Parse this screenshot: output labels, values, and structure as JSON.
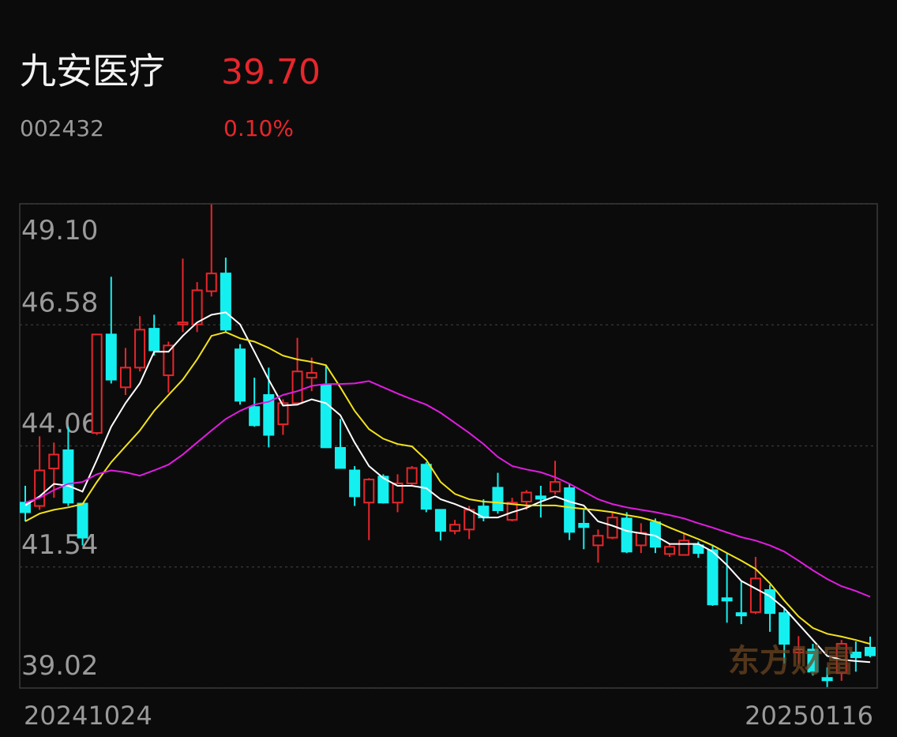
{
  "chart_data": {
    "type": "candlestick",
    "title": "九安医疗",
    "price": "39.70",
    "subtitle": "002432",
    "change": "0.10%",
    "watermark": "东方财富",
    "categories": [
      "20241024",
      null,
      null,
      null,
      null,
      null,
      null,
      null,
      null,
      null,
      null,
      null,
      null,
      null,
      null,
      null,
      null,
      null,
      null,
      null,
      null,
      null,
      null,
      null,
      null,
      null,
      null,
      null,
      null,
      null,
      null,
      null,
      null,
      null,
      null,
      null,
      null,
      null,
      null,
      null,
      null,
      null,
      null,
      null,
      null,
      null,
      null,
      null,
      null,
      null,
      null,
      null,
      null,
      null,
      null,
      null,
      null,
      null,
      null,
      "20250116"
    ],
    "open": [
      42.88,
      42.81,
      43.59,
      43.97,
      42.86,
      44.33,
      46.38,
      45.28,
      45.69,
      46.5,
      45.53,
      46.59,
      46.59,
      47.28,
      47.65,
      46.07,
      44.87,
      45.12,
      44.51,
      44.95,
      45.48,
      45.33,
      44.02,
      43.55,
      42.88,
      43.42,
      42.88,
      43.28,
      43.67,
      42.73,
      42.29,
      42.32,
      42.8,
      43.19,
      42.52,
      42.9,
      43.01,
      43.11,
      43.18,
      42.44,
      41.99,
      42.15,
      42.55,
      41.99,
      42.47,
      41.81,
      41.79,
      41.99,
      41.89,
      40.89,
      40.58,
      40.6,
      41.06,
      40.58,
      39.76,
      39.82,
      39.23,
      39.33,
      39.76,
      39.86
    ],
    "high": [
      43.23,
      44.26,
      44.13,
      44.46,
      42.86,
      46.38,
      47.58,
      46.1,
      46.76,
      46.79,
      46.23,
      47.96,
      47.47,
      49.09,
      47.98,
      46.18,
      45.48,
      45.69,
      45.03,
      46.31,
      45.9,
      45.74,
      44.62,
      43.64,
      43.39,
      43.47,
      43.47,
      43.64,
      43.72,
      42.73,
      42.52,
      42.81,
      42.95,
      43.5,
      42.98,
      43.14,
      43.23,
      43.75,
      43.28,
      42.73,
      42.32,
      42.68,
      42.68,
      42.45,
      42.55,
      42.02,
      42.24,
      42.07,
      41.99,
      41.83,
      41.25,
      41.75,
      41.17,
      40.68,
      40.1,
      39.94,
      39.45,
      40.02,
      39.99,
      40.09
    ],
    "low": [
      42.49,
      42.73,
      42.98,
      42.81,
      41.99,
      44.29,
      45.36,
      45.12,
      45.61,
      45.94,
      45.17,
      46.43,
      46.43,
      47.17,
      46.43,
      44.92,
      44.46,
      44.03,
      44.29,
      44.92,
      45.2,
      44.03,
      43.59,
      42.81,
      42.1,
      42.86,
      42.68,
      43.24,
      42.68,
      42.09,
      42.22,
      42.12,
      42.49,
      42.65,
      42.49,
      42.73,
      42.57,
      43.05,
      42.1,
      41.91,
      41.63,
      42.12,
      41.83,
      41.83,
      41.83,
      41.75,
      41.78,
      41.73,
      40.73,
      40.38,
      40.35,
      40.56,
      40.19,
      39.53,
      39.53,
      39.28,
      39.04,
      39.17,
      39.36,
      39.66
    ],
    "close": [
      42.68,
      43.55,
      43.88,
      42.88,
      42.15,
      46.38,
      45.44,
      45.69,
      46.48,
      46.05,
      46.15,
      46.63,
      47.3,
      47.65,
      46.48,
      45.0,
      44.49,
      44.29,
      44.95,
      45.61,
      45.58,
      44.03,
      43.6,
      43.01,
      43.36,
      42.88,
      43.28,
      43.6,
      42.75,
      42.29,
      42.42,
      42.73,
      42.57,
      42.72,
      42.88,
      43.09,
      42.96,
      43.31,
      42.27,
      42.37,
      42.19,
      42.57,
      41.86,
      42.25,
      41.96,
      41.96,
      42.09,
      41.83,
      40.76,
      40.84,
      40.53,
      41.3,
      40.58,
      39.94,
      39.82,
      39.36,
      39.18,
      39.94,
      39.66,
      39.7
    ],
    "up_color": "#e8262c",
    "down_color": "#14f0f0",
    "moving_averages": [
      {
        "color": "#ffffff",
        "values": [
          42.82,
          43.01,
          43.27,
          43.23,
          43.11,
          43.77,
          44.46,
          44.95,
          45.36,
          46.02,
          46.02,
          46.35,
          46.63,
          46.79,
          46.84,
          46.59,
          46.02,
          45.44,
          44.9,
          44.92,
          45.03,
          44.95,
          44.7,
          44.13,
          43.64,
          43.39,
          43.23,
          43.23,
          43.18,
          42.95,
          42.85,
          42.73,
          42.57,
          42.57,
          42.68,
          42.77,
          42.9,
          43.01,
          42.9,
          42.82,
          42.49,
          42.4,
          42.29,
          42.24,
          42.19,
          42.02,
          42.02,
          42.02,
          41.86,
          41.58,
          41.25,
          41.09,
          40.93,
          40.68,
          40.35,
          40.02,
          39.69,
          39.61,
          39.58,
          39.56
        ]
      },
      {
        "color": "#f2e21c",
        "values": [
          42.49,
          42.65,
          42.73,
          42.78,
          42.85,
          43.31,
          43.72,
          44.05,
          44.38,
          44.79,
          45.12,
          45.44,
          45.86,
          46.35,
          46.43,
          46.3,
          46.23,
          46.1,
          45.94,
          45.86,
          45.81,
          45.74,
          45.28,
          44.79,
          44.41,
          44.21,
          44.1,
          44.05,
          43.77,
          43.31,
          43.06,
          42.95,
          42.9,
          42.88,
          42.85,
          42.82,
          42.82,
          42.82,
          42.78,
          42.75,
          42.72,
          42.68,
          42.62,
          42.57,
          42.49,
          42.36,
          42.24,
          42.12,
          41.99,
          41.83,
          41.67,
          41.5,
          41.2,
          40.84,
          40.51,
          40.27,
          40.15,
          40.09,
          40.02,
          39.94
        ]
      },
      {
        "color": "#e21ce2",
        "values": [
          42.88,
          42.98,
          43.14,
          43.27,
          43.31,
          43.47,
          43.55,
          43.51,
          43.44,
          43.55,
          43.67,
          43.88,
          44.13,
          44.38,
          44.62,
          44.79,
          44.92,
          44.98,
          45.12,
          45.2,
          45.31,
          45.35,
          45.35,
          45.36,
          45.41,
          45.28,
          45.15,
          45.03,
          44.92,
          44.75,
          44.54,
          44.33,
          44.1,
          43.83,
          43.64,
          43.57,
          43.51,
          43.41,
          43.27,
          43.11,
          42.95,
          42.85,
          42.78,
          42.73,
          42.68,
          42.62,
          42.55,
          42.45,
          42.36,
          42.26,
          42.16,
          42.09,
          41.99,
          41.86,
          41.67,
          41.47,
          41.29,
          41.14,
          41.04,
          40.92
        ]
      }
    ],
    "ylim": [
      39.02,
      49.1
    ],
    "yticks": [
      {
        "value": 49.1,
        "label": "49.10"
      },
      46.58,
      44.06,
      41.54,
      39.02
    ],
    "grid": true
  }
}
